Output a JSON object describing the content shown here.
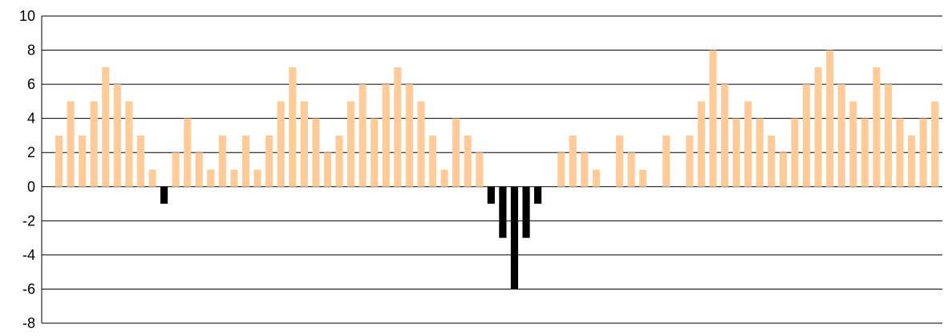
{
  "chart_data": {
    "type": "bar",
    "title": "",
    "xlabel": "",
    "ylabel": "",
    "ylim": [
      -8,
      10
    ],
    "yticks": [
      10,
      8,
      6,
      4,
      2,
      0,
      -2,
      -4,
      -6,
      -8
    ],
    "grid": true,
    "legend": "none",
    "colors": {
      "positive": "#FFCC99",
      "negative": "#000000",
      "grid": "#000000",
      "axis": "#000000",
      "background": "#ffffff"
    },
    "values": [
      3,
      5,
      3,
      5,
      7,
      6,
      5,
      3,
      1,
      -1,
      2,
      4,
      2,
      1,
      3,
      1,
      3,
      1,
      3,
      5,
      7,
      5,
      4,
      2,
      3,
      5,
      6,
      4,
      6,
      7,
      6,
      5,
      3,
      1,
      4,
      3,
      2,
      -1,
      -3,
      -6,
      -3,
      -1,
      0,
      2,
      3,
      2,
      1,
      0,
      3,
      2,
      1,
      0,
      3,
      0,
      3,
      5,
      8,
      6,
      4,
      5,
      4,
      3,
      2,
      4,
      6,
      7,
      8,
      6,
      5,
      4,
      7,
      6,
      4,
      3,
      4,
      5
    ]
  }
}
